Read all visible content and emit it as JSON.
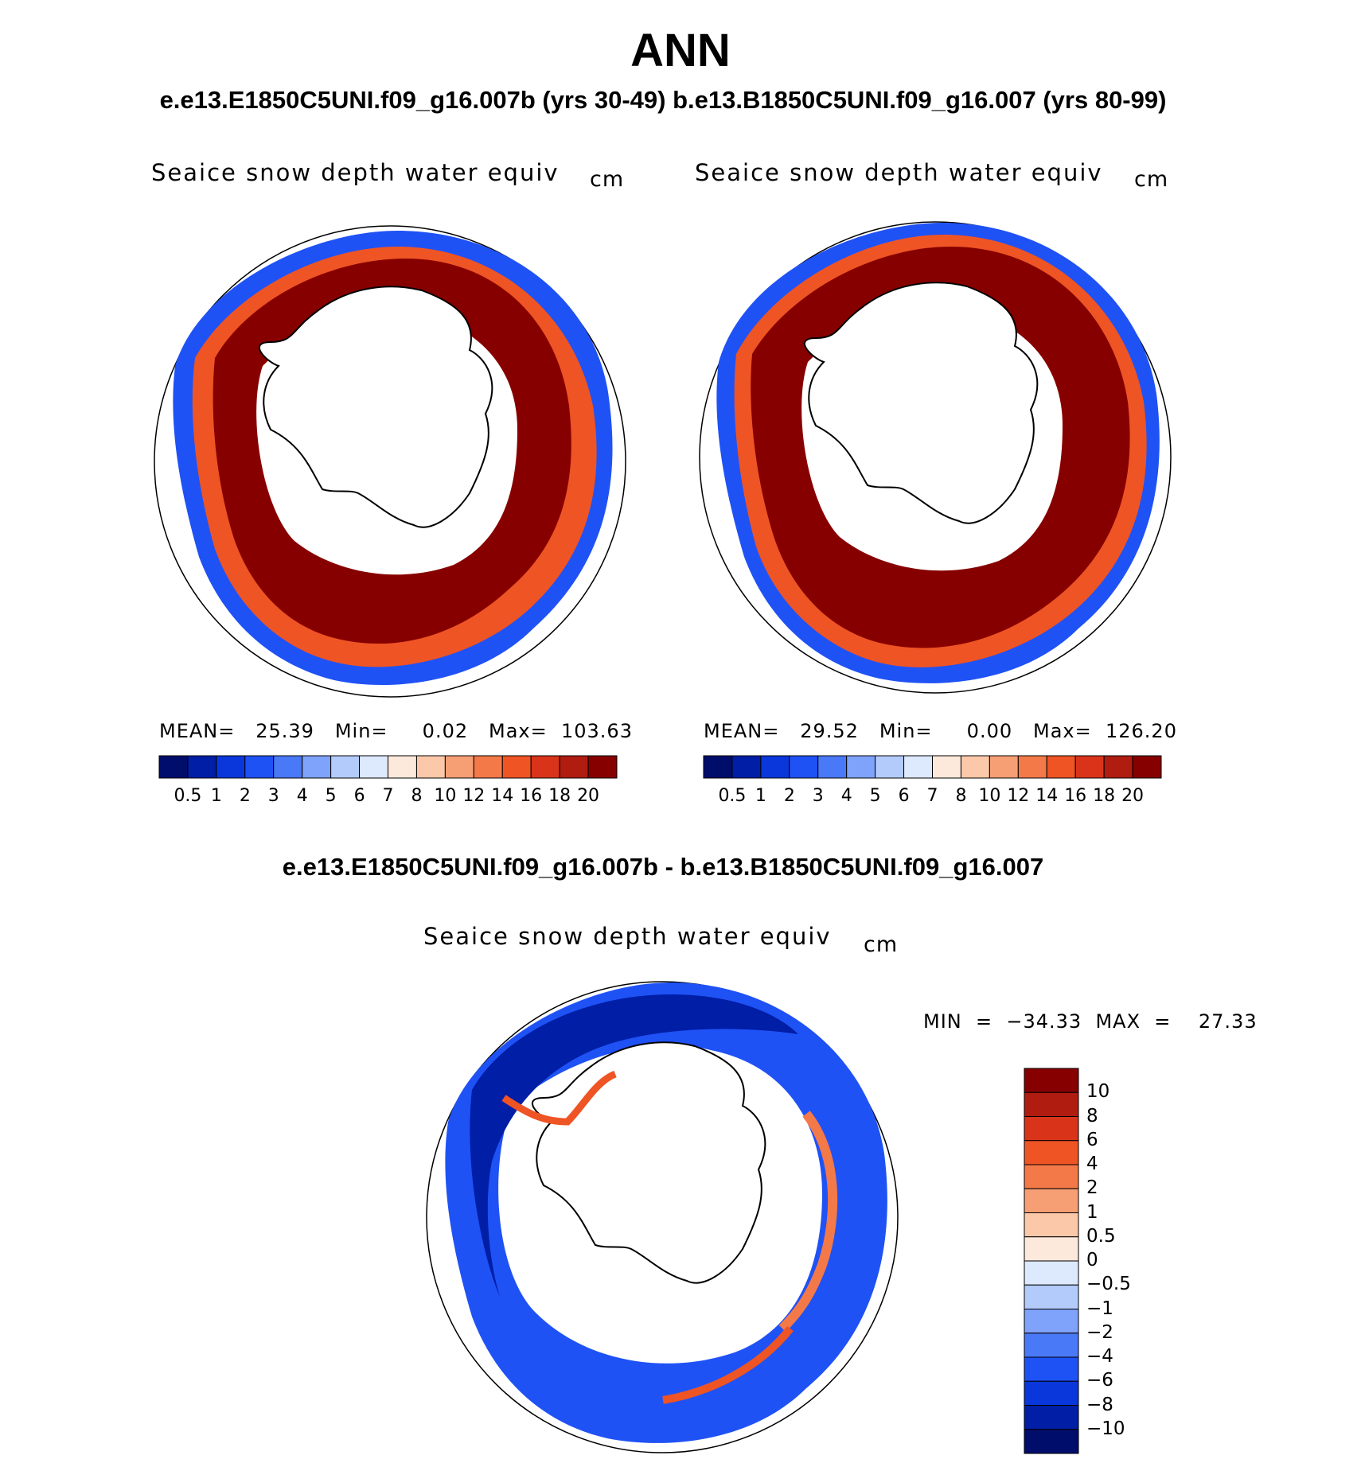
{
  "title": "ANN",
  "subtitle": "e.e13.E1850C5UNI.f09_g16.007b (yrs 30-49)  b.e13.B1850C5UNI.f09_g16.007 (yrs 80-99)",
  "diff_title": "e.e13.E1850C5UNI.f09_g16.007b - b.e13.B1850C5UNI.f09_g16.007",
  "panels": [
    {
      "title": "Seaice snow depth water equiv",
      "units": "cm",
      "stats": "MEAN=   25.39   Min=     0.02   Max=  103.63"
    },
    {
      "title": "Seaice snow depth water equiv",
      "units": "cm",
      "stats": "MEAN=   29.52   Min=     0.00   Max=  126.20"
    }
  ],
  "diff_panel": {
    "title": "Seaice snow depth water equiv",
    "units": "cm",
    "stats": "MIN  =  −34.33  MAX  =    27.33"
  },
  "colorbar": {
    "colors": [
      "#000d6b",
      "#001ea6",
      "#0a37db",
      "#1f52f5",
      "#4a79f7",
      "#7fa2fa",
      "#b3cbfb",
      "#dde9fd",
      "#fde9dc",
      "#fbc8a9",
      "#f79f74",
      "#f47948",
      "#ef5424",
      "#d9341a",
      "#b01c10",
      "#870000"
    ],
    "labels": [
      "0.5",
      "1",
      "2",
      "3",
      "4",
      "5",
      "6",
      "7",
      "8",
      "10",
      "12",
      "14",
      "16",
      "18",
      "20"
    ]
  },
  "diff_colorbar": {
    "colors": [
      "#000d6b",
      "#001ea6",
      "#0a37db",
      "#1f52f5",
      "#4a79f7",
      "#7fa2fa",
      "#b3cbfb",
      "#dde9fd",
      "#fde9dc",
      "#fbc8a9",
      "#f79f74",
      "#f47948",
      "#ef5424",
      "#d9341a",
      "#b01c10",
      "#870000"
    ],
    "labels": [
      "10",
      "8",
      "6",
      "4",
      "2",
      "1",
      "0.5",
      "0",
      "−0.5",
      "−1",
      "−2",
      "−4",
      "−6",
      "−8",
      "−10"
    ]
  }
}
